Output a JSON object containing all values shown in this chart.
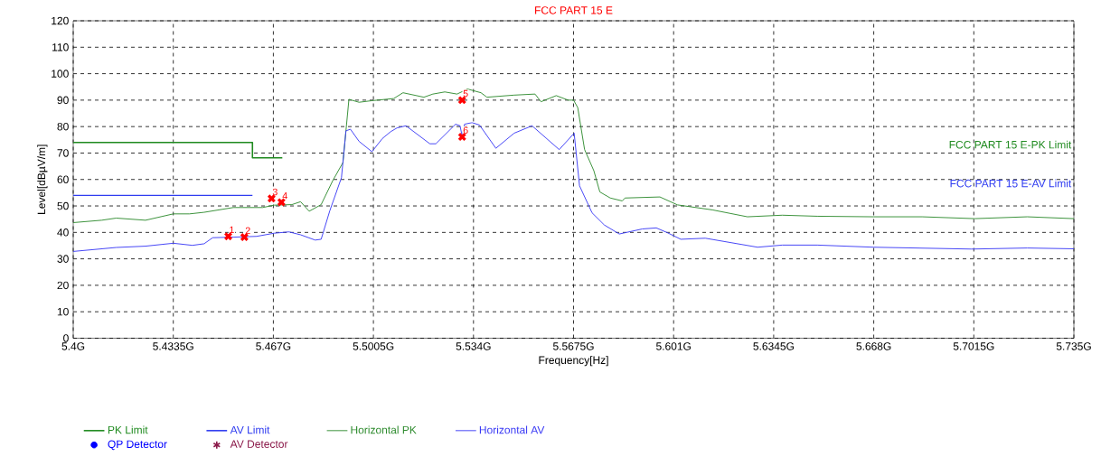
{
  "chart_data": {
    "type": "line",
    "title": "FCC PART 15 E",
    "xlabel": "Frequency[Hz]",
    "ylabel": "Level[dBµV/m]",
    "xlim": [
      5.4,
      5.735
    ],
    "ylim": [
      0,
      120
    ],
    "xticks": [
      {
        "value": 5.4,
        "label": "5.4G"
      },
      {
        "value": 5.4335,
        "label": "5.4335G"
      },
      {
        "value": 5.467,
        "label": "5.467G"
      },
      {
        "value": 5.5005,
        "label": "5.5005G"
      },
      {
        "value": 5.534,
        "label": "5.534G"
      },
      {
        "value": 5.5675,
        "label": "5.5675G"
      },
      {
        "value": 5.601,
        "label": "5.601G"
      },
      {
        "value": 5.6345,
        "label": "5.6345G"
      },
      {
        "value": 5.668,
        "label": "5.668G"
      },
      {
        "value": 5.7015,
        "label": "5.7015G"
      },
      {
        "value": 5.735,
        "label": "5.735G"
      }
    ],
    "yticks": [
      0,
      10,
      20,
      30,
      40,
      50,
      60,
      70,
      80,
      90,
      100,
      110,
      120
    ],
    "grid": true,
    "legend": "bottom",
    "series": [
      {
        "name": "PK Limit",
        "color": "#1f8a1f",
        "x": [
          5.4,
          5.46,
          5.46,
          5.47
        ],
        "values": [
          74,
          74,
          68.2,
          68.2
        ]
      },
      {
        "name": "AV Limit",
        "color": "#2f3cf0",
        "x": [
          5.4,
          5.46
        ],
        "values": [
          54,
          54
        ]
      },
      {
        "name": "Horizontal PK",
        "color": "#2e8b2e",
        "x": [
          5.4,
          5.4095,
          5.4144,
          5.4242,
          5.4335,
          5.4389,
          5.4438,
          5.4536,
          5.4634,
          5.4673,
          5.4732,
          5.4761,
          5.479,
          5.483,
          5.4869,
          5.4903,
          5.4923,
          5.4957,
          5.5,
          5.5073,
          5.5104,
          5.5174,
          5.5204,
          5.5244,
          5.5285,
          5.532,
          5.5365,
          5.5385,
          5.5476,
          5.5546,
          5.5566,
          5.5617,
          5.5657,
          5.5675,
          5.5689,
          5.5712,
          5.5743,
          5.5763,
          5.5798,
          5.5838,
          5.5847,
          5.5964,
          5.6023,
          5.614,
          5.6257,
          5.6374,
          5.6491,
          5.6679,
          5.6842,
          5.7018,
          5.7194,
          5.735
        ],
        "values": [
          43.7,
          44.6,
          45.4,
          44.6,
          47,
          47,
          47.6,
          49.4,
          49.4,
          50.3,
          50.5,
          51.6,
          48,
          50.5,
          59.6,
          66.4,
          90.3,
          89.2,
          89.8,
          90.6,
          92.8,
          91.1,
          92.3,
          93.1,
          92.3,
          94.2,
          92.8,
          91.1,
          91.9,
          92.3,
          89.4,
          91.7,
          90,
          90,
          87.2,
          71.3,
          63.3,
          55.3,
          53,
          51.9,
          53,
          53.4,
          50.4,
          48.5,
          45.9,
          46.5,
          46.1,
          45.9,
          45.9,
          45.2,
          45.9,
          45.2
        ]
      },
      {
        "name": "Horizontal AV",
        "color": "#3a3af5",
        "x": [
          5.4,
          5.4144,
          5.4242,
          5.4335,
          5.4399,
          5.4438,
          5.4467,
          5.4536,
          5.4614,
          5.4673,
          5.4722,
          5.4761,
          5.481,
          5.483,
          5.4859,
          5.4898,
          5.4913,
          5.4928,
          5.4957,
          5.5,
          5.5035,
          5.5063,
          5.5084,
          5.5114,
          5.5194,
          5.5214,
          5.528,
          5.5295,
          5.5302,
          5.531,
          5.5335,
          5.536,
          5.5415,
          5.5476,
          5.5536,
          5.5627,
          5.5677,
          5.5695,
          5.5737,
          5.5778,
          5.5828,
          5.5905,
          5.5952,
          5.5987,
          5.6034,
          5.6116,
          5.6291,
          5.6374,
          5.6491,
          5.6679,
          5.7007,
          5.7194,
          5.735
        ],
        "values": [
          32.8,
          34.3,
          34.8,
          35.9,
          35.1,
          35.7,
          38,
          38.2,
          38.5,
          39.7,
          40.2,
          39.1,
          37.1,
          37.4,
          48.2,
          60.7,
          78.4,
          79,
          74.4,
          70.5,
          75.5,
          78.1,
          79.5,
          80.3,
          73.5,
          73.5,
          80.9,
          80.3,
          76.4,
          80.9,
          81.5,
          80.6,
          71.8,
          77.5,
          80.3,
          71.3,
          77.5,
          57.6,
          47.4,
          42.8,
          39.4,
          41.3,
          41.7,
          40,
          37.4,
          37.8,
          34.4,
          35.2,
          35.2,
          34.4,
          33.7,
          34.1,
          33.8
        ]
      },
      {
        "name": "QP Detector",
        "type": "scatter",
        "marker": "circle",
        "color": "#0000ff"
      },
      {
        "name": "AV Detector",
        "type": "scatter",
        "marker": "star",
        "color": "#8b1a4a"
      },
      {
        "type": "scatter",
        "marker": "cross",
        "color": "#ff0000",
        "x": [
          5.4519,
          5.4573,
          5.4664,
          5.4697,
          5.5302,
          5.5302
        ],
        "values": [
          38.5,
          38.2,
          52.8,
          51.4,
          90,
          76.1
        ]
      }
    ],
    "annotations": [
      {
        "text": "1",
        "x": 5.4519,
        "y": 38.5
      },
      {
        "text": "2",
        "x": 5.4573,
        "y": 38.2
      },
      {
        "text": "3",
        "x": 5.4664,
        "y": 52.8
      },
      {
        "text": "4",
        "x": 5.4697,
        "y": 51.4
      },
      {
        "text": "5",
        "x": 5.5302,
        "y": 90
      },
      {
        "text": "6",
        "x": 5.5302,
        "y": 76.1
      },
      "FCC PART 15 E-PK Limit",
      "FCC PART 15 E-AV Limit"
    ]
  }
}
